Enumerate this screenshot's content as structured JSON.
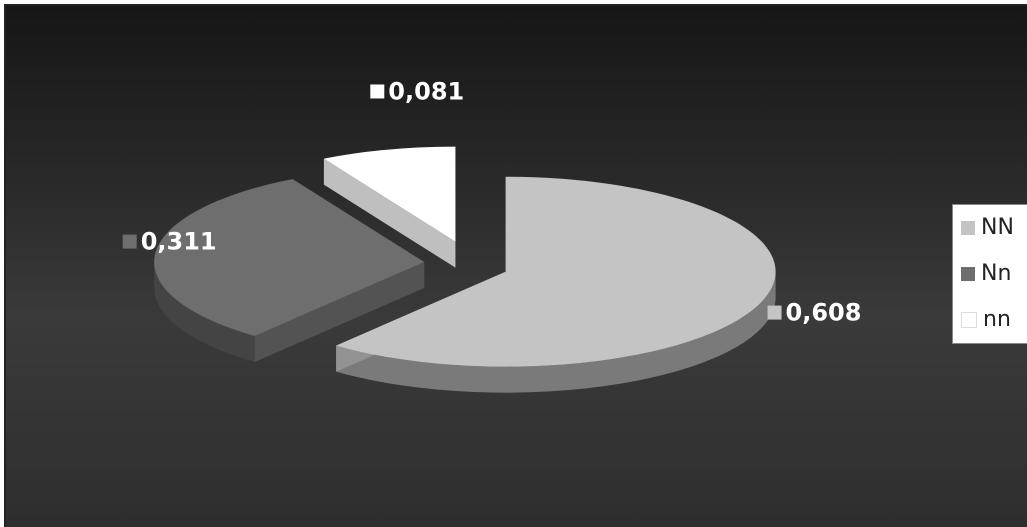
{
  "chart_data": {
    "type": "pie",
    "style": "3d-exploded",
    "categories": [
      "NN",
      "Nn",
      "nn"
    ],
    "values": [
      0.608,
      0.311,
      0.081
    ],
    "data_labels": [
      "0,608",
      "0,311",
      "0,081"
    ],
    "legend": {
      "placement": "right",
      "entries": [
        "NN",
        "Nn",
        "nn"
      ]
    },
    "colors": {
      "NN": "#c4c4c4",
      "Nn": "#6e6e6e",
      "nn": "#ffffff",
      "background": "#2e2e2e"
    }
  }
}
